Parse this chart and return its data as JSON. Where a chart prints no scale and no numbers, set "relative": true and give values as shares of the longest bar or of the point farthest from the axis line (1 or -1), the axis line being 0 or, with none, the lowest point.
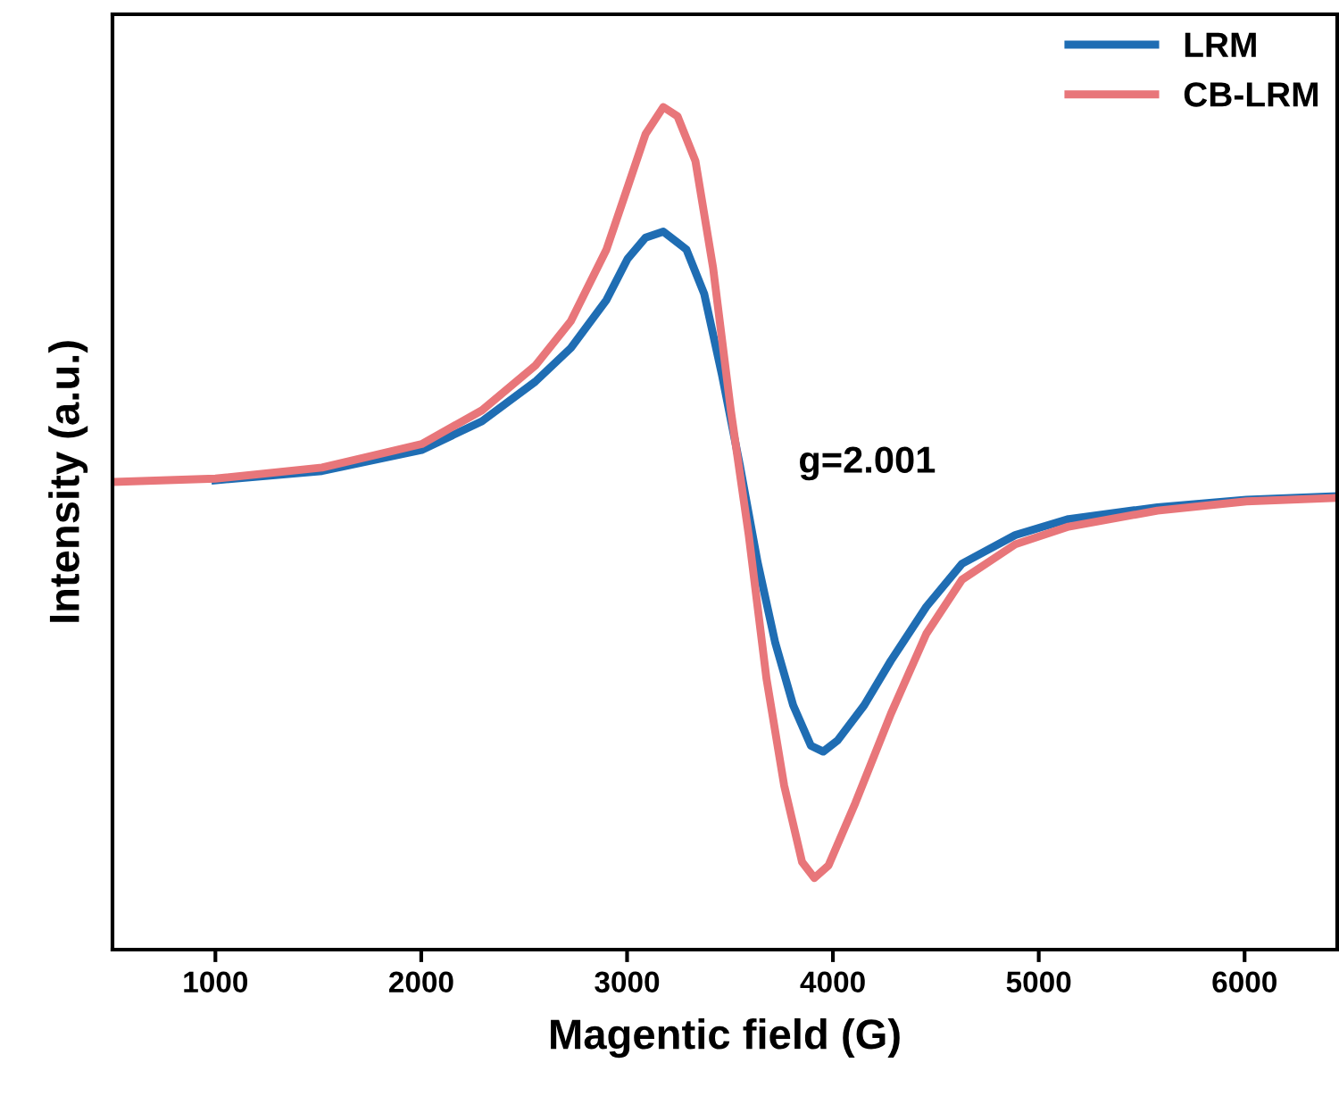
{
  "chart_data": {
    "type": "line",
    "xlabel": "Magentic field (G)",
    "ylabel": "Intensity (a.u.)",
    "relative": true,
    "xlim": [
      500,
      6450
    ],
    "xticks": [
      1000,
      2000,
      3000,
      4000,
      5000,
      6000
    ],
    "tick_labels": "x",
    "grid": false,
    "legend": "top right",
    "marker": "none",
    "line_style": "solid",
    "annotations": [
      "g=2.001"
    ],
    "series": [
      {
        "name": "LRM",
        "color": "#1f6db3",
        "x": [
          1000,
          1518,
          2002,
          2295,
          2554,
          2727,
          2900,
          3003,
          3090,
          3176,
          3288,
          3375,
          3461,
          3547,
          3634,
          3720,
          3807,
          3893,
          3953,
          4022,
          4152,
          4282,
          4454,
          4627,
          4886,
          5145,
          5577,
          6009,
          6440
        ],
        "values": [
          0.557,
          0.568,
          0.593,
          0.627,
          0.674,
          0.714,
          0.771,
          0.82,
          0.845,
          0.852,
          0.831,
          0.778,
          0.682,
          0.576,
          0.46,
          0.364,
          0.29,
          0.242,
          0.235,
          0.248,
          0.29,
          0.343,
          0.407,
          0.458,
          0.492,
          0.511,
          0.525,
          0.534,
          0.538
        ]
      },
      {
        "name": "CB-LRM",
        "color": "#e8767a",
        "x": [
          508,
          1000,
          1518,
          2002,
          2295,
          2554,
          2727,
          2900,
          3003,
          3090,
          3176,
          3245,
          3332,
          3418,
          3504,
          3591,
          3677,
          3763,
          3850,
          3910,
          3979,
          4109,
          4282,
          4454,
          4627,
          4886,
          5145,
          5577,
          6009,
          6440
        ],
        "values": [
          0.555,
          0.559,
          0.572,
          0.6,
          0.64,
          0.693,
          0.746,
          0.831,
          0.905,
          0.968,
          1.0,
          0.989,
          0.936,
          0.809,
          0.64,
          0.492,
          0.322,
          0.195,
          0.104,
          0.085,
          0.1,
          0.174,
          0.28,
          0.375,
          0.439,
          0.481,
          0.502,
          0.521,
          0.532,
          0.536
        ]
      }
    ]
  }
}
